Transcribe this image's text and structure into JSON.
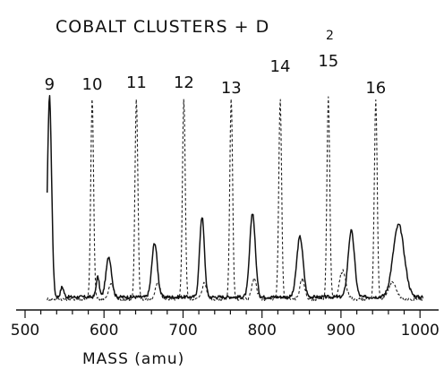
{
  "chart_data": {
    "type": "line",
    "title": "COBALT CLUSTERS + D",
    "title_subscript": "2",
    "xlabel": "MASS (amu)",
    "ylabel": "",
    "xlim": [
      500,
      1010
    ],
    "ylim": [
      0,
      100
    ],
    "x_ticks": [
      500,
      600,
      700,
      800,
      900,
      1000
    ],
    "x_tick_labels": [
      "500",
      "600",
      "700",
      "800",
      "900",
      "1000"
    ],
    "grid": false,
    "legend": "none",
    "series": [
      {
        "style": "solid",
        "baseline": 2,
        "peaks": [
          {
            "x": 531,
            "y": 100,
            "w": 2.6
          },
          {
            "x": 547,
            "y": 5,
            "w": 2.0
          },
          {
            "x": 592,
            "y": 10,
            "w": 2.0
          },
          {
            "x": 606,
            "y": 20,
            "w": 3.5
          },
          {
            "x": 664,
            "y": 27,
            "w": 3.5
          },
          {
            "x": 724,
            "y": 40,
            "w": 3.0
          },
          {
            "x": 788,
            "y": 42,
            "w": 3.5
          },
          {
            "x": 848,
            "y": 30,
            "w": 4.0
          },
          {
            "x": 913,
            "y": 33,
            "w": 4.0
          },
          {
            "x": 973,
            "y": 36,
            "w": 7.0
          }
        ]
      },
      {
        "style": "dashed",
        "baseline": 1,
        "peaks": [
          {
            "x": 585,
            "y": 100,
            "w": 1.8
          },
          {
            "x": 641,
            "y": 100,
            "w": 1.8
          },
          {
            "x": 701,
            "y": 100,
            "w": 1.8
          },
          {
            "x": 761,
            "y": 100,
            "w": 1.8
          },
          {
            "x": 823,
            "y": 100,
            "w": 1.8
          },
          {
            "x": 884,
            "y": 100,
            "w": 1.8
          },
          {
            "x": 944,
            "y": 100,
            "w": 1.8
          },
          {
            "x": 609,
            "y": 8,
            "w": 3.0
          },
          {
            "x": 668,
            "y": 8,
            "w": 3.0
          },
          {
            "x": 727,
            "y": 8,
            "w": 3.0
          },
          {
            "x": 790,
            "y": 10,
            "w": 3.0
          },
          {
            "x": 851,
            "y": 10,
            "w": 3.0
          },
          {
            "x": 902,
            "y": 14,
            "w": 4.0
          },
          {
            "x": 965,
            "y": 8,
            "w": 5.0
          }
        ]
      }
    ],
    "peak_labels": [
      {
        "text": "9",
        "x": 531
      },
      {
        "text": "10",
        "x": 585
      },
      {
        "text": "11",
        "x": 641
      },
      {
        "text": "12",
        "x": 701
      },
      {
        "text": "13",
        "x": 761
      },
      {
        "text": "14",
        "x": 823
      },
      {
        "text": "15",
        "x": 884
      },
      {
        "text": "16",
        "x": 944
      }
    ]
  }
}
